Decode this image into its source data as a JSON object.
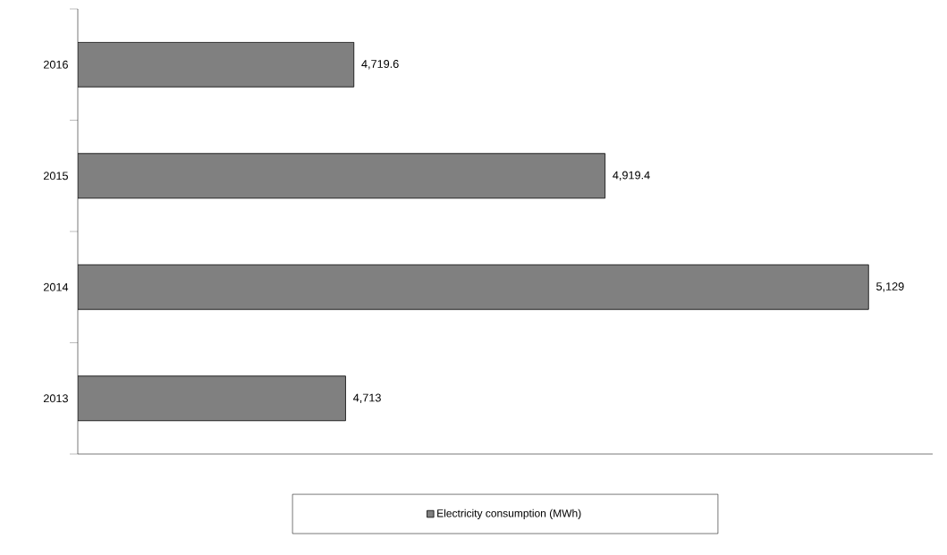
{
  "chart_data": {
    "type": "bar",
    "orientation": "horizontal",
    "categories": [
      "2016",
      "2015",
      "2014",
      "2013"
    ],
    "series": [
      {
        "name": "Electricity consumption (MWh)",
        "color": "#808080",
        "values": [
          4719.6,
          4919.4,
          5129,
          4713
        ],
        "value_labels": [
          "4,719.6",
          "4,919.4",
          "5,129",
          "4,713"
        ]
      }
    ],
    "xlim": [
      4500,
      5180
    ],
    "tick_labels": "y",
    "legend": "bottom",
    "grid": false
  }
}
